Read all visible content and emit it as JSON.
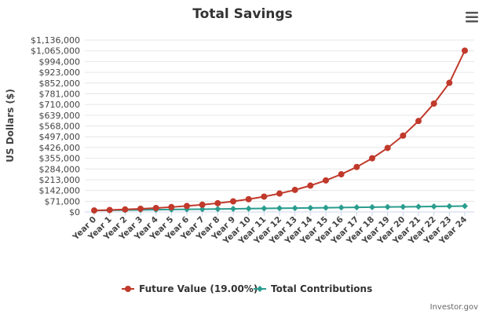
{
  "chart_data": {
    "type": "line",
    "title": "Total Savings",
    "ylabel": "US Dollars ($)",
    "xlabel": "",
    "ylim": [
      0,
      1136000
    ],
    "yticks": [
      0,
      71000,
      142000,
      213000,
      284000,
      355000,
      426000,
      497000,
      568000,
      639000,
      710000,
      781000,
      852000,
      923000,
      994000,
      1065000,
      1136000
    ],
    "ytick_labels": [
      "$0",
      "$71,000",
      "$142,000",
      "$213,000",
      "$284,000",
      "$355,000",
      "$426,000",
      "$497,000",
      "$568,000",
      "$639,000",
      "$710,000",
      "$781,000",
      "$852,000",
      "$923,000",
      "$994,000",
      "$1,065,000",
      "$1,136,000"
    ],
    "categories": [
      "Year 0",
      "Year 1",
      "Year 2",
      "Year 3",
      "Year 4",
      "Year 5",
      "Year 6",
      "Year 7",
      "Year 8",
      "Year 9",
      "Year 10",
      "Year 11",
      "Year 12",
      "Year 13",
      "Year 14",
      "Year 15",
      "Year 16",
      "Year 17",
      "Year 18",
      "Year 19",
      "Year 20",
      "Year 21",
      "Year 22",
      "Year 23",
      "Year 24"
    ],
    "grid": true,
    "legend": "bottom-center",
    "series": [
      {
        "name": "Future Value (19.00%)",
        "color": "#c0392b",
        "marker": "circle",
        "values": [
          10000,
          13100,
          16700,
          21000,
          26100,
          32100,
          39300,
          47800,
          57900,
          70000,
          84300,
          101300,
          121600,
          145600,
          174300,
          208400,
          248900,
          297200,
          354600,
          422900,
          504200,
          600900,
          716000,
          853000,
          1066000
        ]
      },
      {
        "name": "Total Contributions",
        "color": "#2a9d8f",
        "marker": "diamond",
        "values": [
          10000,
          11200,
          12400,
          13600,
          14800,
          16000,
          17200,
          18400,
          19600,
          20800,
          22000,
          23200,
          24400,
          25600,
          26800,
          28000,
          29200,
          30400,
          31600,
          32800,
          34000,
          35200,
          36400,
          37600,
          38800
        ]
      }
    ]
  },
  "credit": "Investor.gov",
  "menu_icon": "hamburger-menu-icon"
}
